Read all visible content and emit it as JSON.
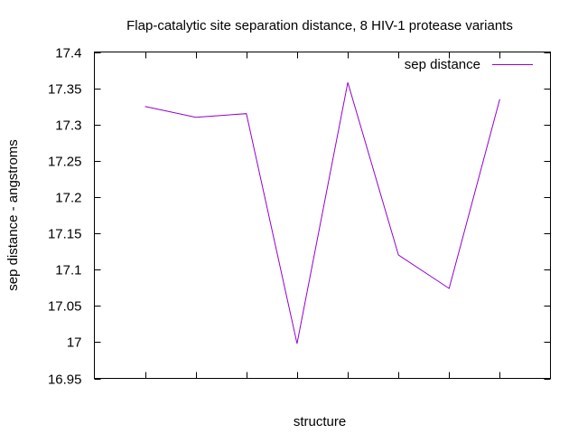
{
  "chart_data": {
    "type": "line",
    "title": "Flap-catalytic site separation distance, 8 HIV-1 protease variants",
    "xlabel": "structure",
    "ylabel": "sep distance - angstroms",
    "ylim": [
      16.95,
      17.4
    ],
    "yticks": [
      "17.4",
      "17.35",
      "17.3",
      "17.25",
      "17.2",
      "17.15",
      "17.1",
      "17.05",
      "17",
      "16.95"
    ],
    "ytick_values": [
      17.4,
      17.35,
      17.3,
      17.25,
      17.2,
      17.15,
      17.1,
      17.05,
      17.0,
      16.95
    ],
    "xlim": [
      0,
      9
    ],
    "x": [
      1,
      2,
      3,
      4,
      5,
      6,
      7,
      8
    ],
    "grid": false,
    "legend_position": "top-right",
    "series": [
      {
        "name": "sep distance",
        "color": "#9400d3",
        "values": [
          17.325,
          17.31,
          17.315,
          16.998,
          17.358,
          17.12,
          17.074,
          17.335
        ]
      }
    ]
  }
}
